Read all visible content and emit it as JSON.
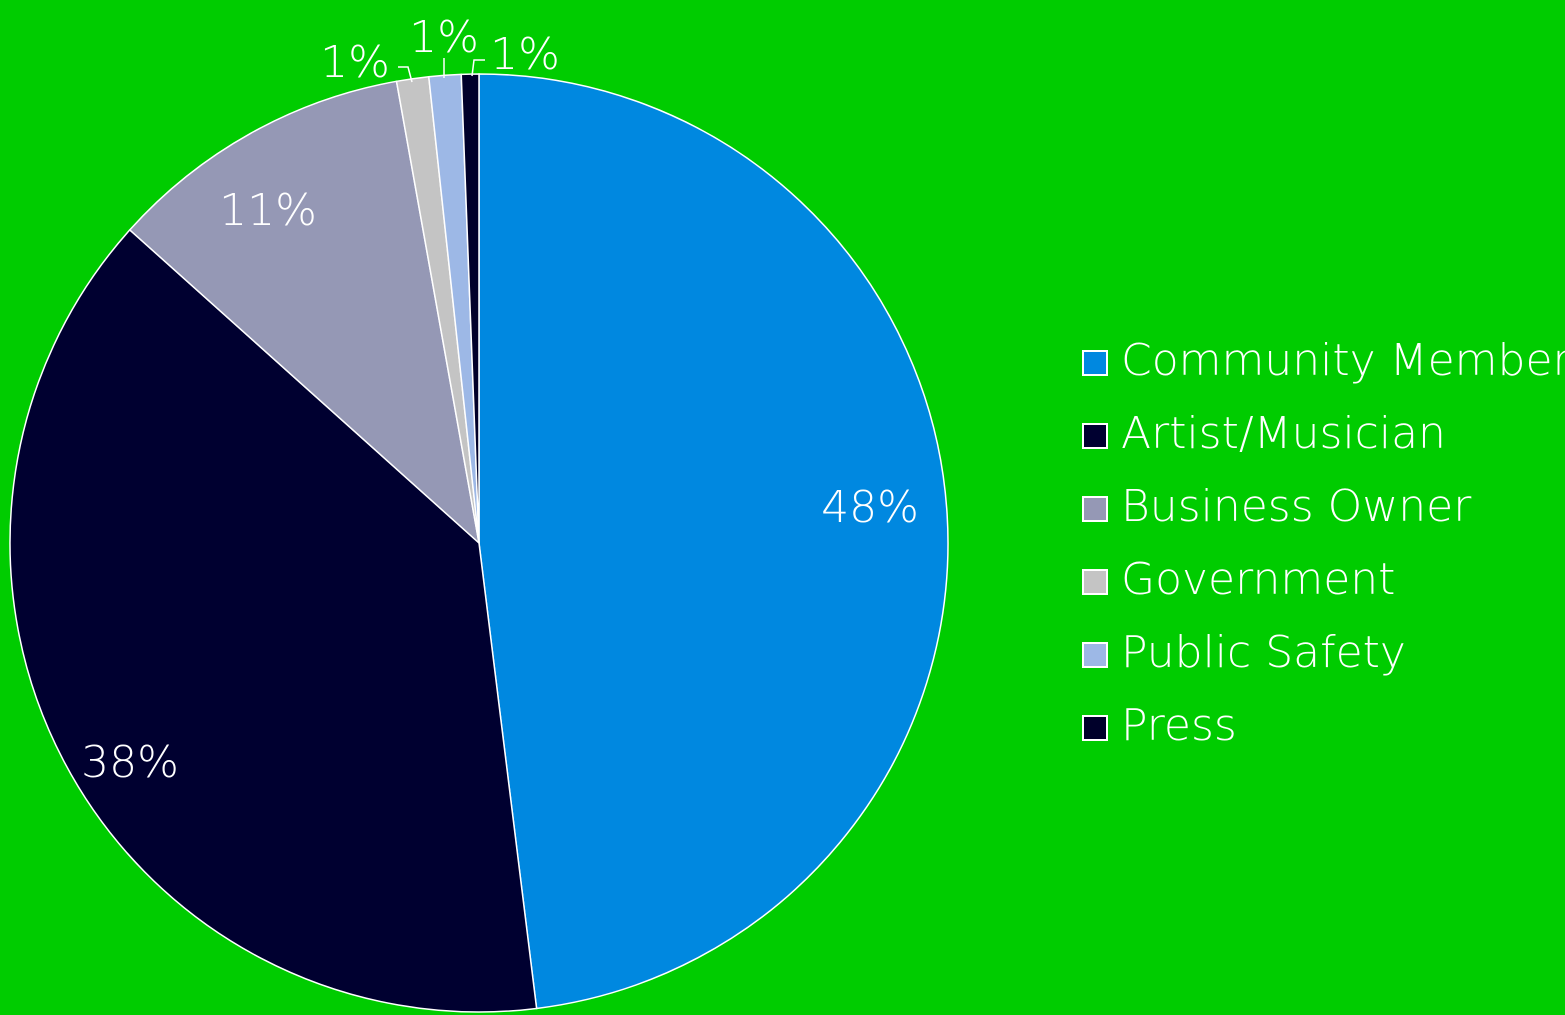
{
  "chart_data": {
    "type": "pie",
    "title": "",
    "categories": [
      "Community Member",
      "Artist/Musician",
      "Business Owner",
      "Government",
      "Public Safety",
      "Press"
    ],
    "values": [
      47.8,
      38.4,
      10.5,
      1.1,
      1.1,
      0.6
    ],
    "data_labels": [
      "48%",
      "38%",
      "11%",
      "1%",
      "1%",
      "1%"
    ],
    "colors": [
      "#0088E0",
      "#000030",
      "#9598B5",
      "#C4C4C4",
      "#9DB8E6",
      "#00002A"
    ],
    "legend_position": "right",
    "background": "#00CC00"
  }
}
